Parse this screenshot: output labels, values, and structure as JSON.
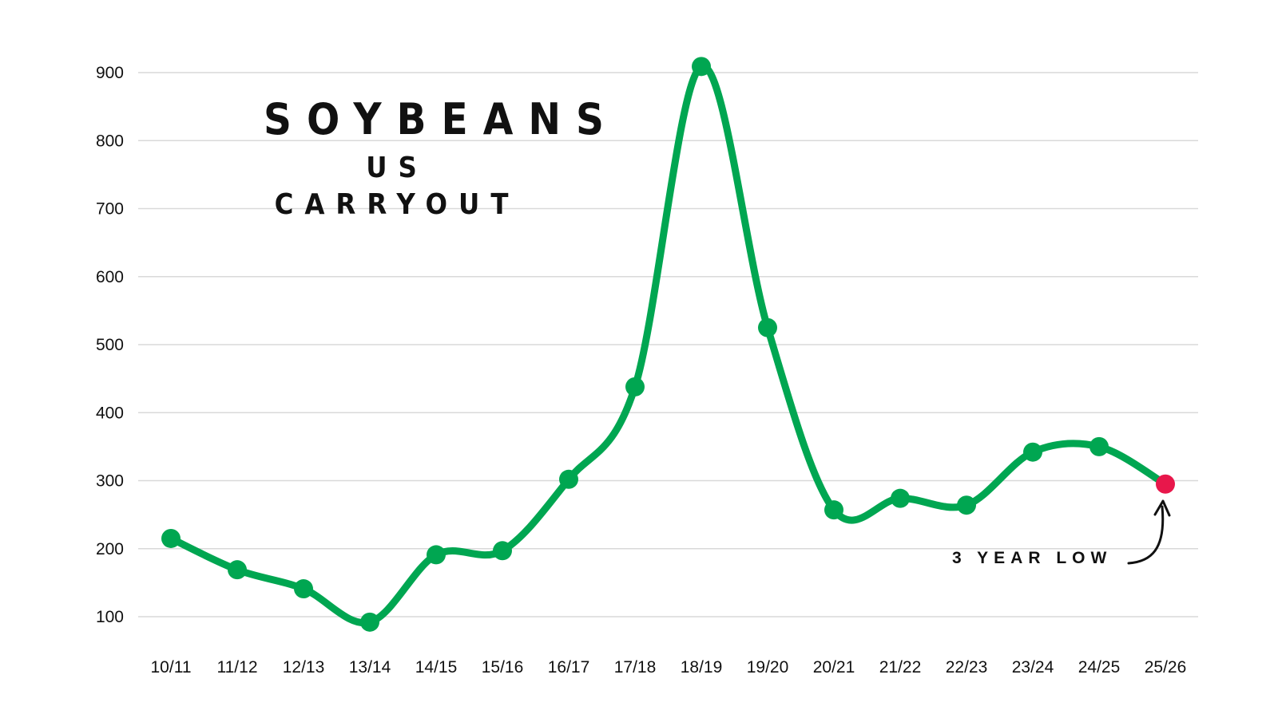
{
  "title": "SOYBEANS",
  "subtitle": "US CARRYOUT",
  "annotation": "3 YEAR LOW",
  "colors": {
    "line": "#00a651",
    "highlight": "#e8174b",
    "grid": "#d9d9d9",
    "text": "#111111"
  },
  "chart_data": {
    "type": "line",
    "title": "SOYBEANS",
    "subtitle": "US CARRYOUT",
    "xlabel": "",
    "ylabel": "",
    "categories": [
      "10/11",
      "11/12",
      "12/13",
      "13/14",
      "14/15",
      "15/16",
      "16/17",
      "17/18",
      "18/19",
      "19/20",
      "20/21",
      "21/22",
      "22/23",
      "23/24",
      "24/25",
      "25/26"
    ],
    "series": [
      {
        "values": [
          215,
          169,
          141,
          92,
          191,
          197,
          302,
          438,
          909,
          525,
          257,
          274,
          264,
          342,
          350,
          295
        ]
      }
    ],
    "y_ticks": [
      100,
      200,
      300,
      400,
      500,
      600,
      700,
      800,
      900
    ],
    "ylim": [
      100,
      900
    ],
    "grid": true,
    "smooth": true,
    "highlight_point": {
      "category": "25/26",
      "value": 295,
      "label": "3 YEAR LOW"
    },
    "legend": "none"
  }
}
